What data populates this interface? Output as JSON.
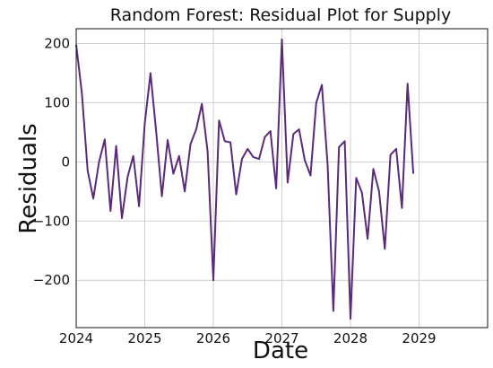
{
  "chart_data": {
    "type": "line",
    "title": "Random Forest: Residual Plot for Supply",
    "xlabel": "Date",
    "ylabel": "Residuals",
    "x_ticks": [
      "2024",
      "2025",
      "2026",
      "2027",
      "2028",
      "2029"
    ],
    "y_ticks": [
      200,
      100,
      0,
      -100,
      -200
    ],
    "xlim": [
      "2024-01-01",
      "2030-01-01"
    ],
    "ylim": [
      -280,
      225
    ],
    "grid": true,
    "series_color": "#5b2a7a",
    "series": [
      {
        "x": [
          "2024-01-01",
          "2024-02-01",
          "2024-03-01",
          "2024-04-01",
          "2024-05-01",
          "2024-06-01",
          "2024-07-01",
          "2024-08-01",
          "2024-09-01",
          "2024-10-01",
          "2024-11-01",
          "2024-12-01",
          "2025-01-01",
          "2025-02-01",
          "2025-03-01",
          "2025-04-01",
          "2025-05-01",
          "2025-06-01",
          "2025-07-01",
          "2025-08-01",
          "2025-09-01",
          "2025-10-01",
          "2025-11-01",
          "2025-12-01",
          "2026-01-01",
          "2026-02-01",
          "2026-03-01",
          "2026-04-01",
          "2026-05-01",
          "2026-06-01",
          "2026-07-01",
          "2026-08-01",
          "2026-09-01",
          "2026-10-01",
          "2026-11-01",
          "2026-12-01",
          "2027-01-01",
          "2027-02-01",
          "2027-03-01",
          "2027-04-01",
          "2027-05-01",
          "2027-06-01",
          "2027-07-01",
          "2027-08-01",
          "2027-09-01",
          "2027-10-01",
          "2027-11-01",
          "2027-12-01",
          "2028-01-01",
          "2028-02-01",
          "2028-03-01",
          "2028-04-01",
          "2028-05-01",
          "2028-06-01",
          "2028-07-01",
          "2028-08-01",
          "2028-09-01",
          "2028-10-01",
          "2028-11-01",
          "2028-12-01"
        ],
        "values": [
          198,
          115,
          -15,
          -62,
          0,
          38,
          -83,
          27,
          -95,
          -25,
          10,
          -75,
          65,
          150,
          50,
          -58,
          37,
          -20,
          10,
          -50,
          30,
          55,
          98,
          18,
          -200,
          70,
          35,
          33,
          -55,
          5,
          22,
          8,
          5,
          42,
          52,
          -45,
          207,
          -35,
          47,
          55,
          3,
          -23,
          100,
          130,
          -5,
          -252,
          25,
          35,
          -265,
          -27,
          -52,
          -130,
          -12,
          -50,
          -147,
          12,
          22,
          -78,
          132,
          -20
        ]
      }
    ]
  }
}
